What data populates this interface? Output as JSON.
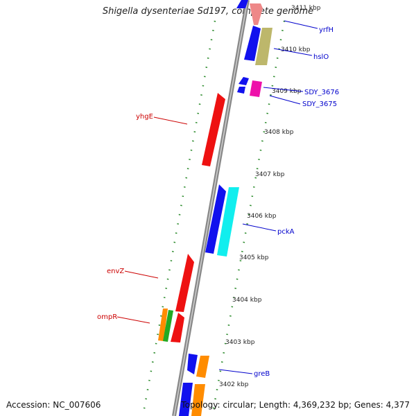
{
  "title": "Shigella dysenteriae Sd197, complete genome",
  "footer": {
    "accession": "Accession: NC_007606",
    "topology": "Topology: circular; Length: 4,369,232 bp; Genes: 4,377"
  },
  "ticks": [
    "3411 kbp",
    "3410 kbp",
    "3409 kbp",
    "3408 kbp",
    "3407 kbp",
    "3406 kbp",
    "3405 kbp",
    "3404 kbp",
    "3403 kbp",
    "3402 kbp"
  ],
  "genes": {
    "yrfH": "yrfH",
    "hslO": "hslO",
    "SDY_3676": "SDY_3676",
    "SDY_3675": "SDY_3675",
    "yhgE": "yhgE",
    "pckA": "pckA",
    "envZ": "envZ",
    "ompR": "ompR",
    "greB": "greB"
  },
  "colors": {
    "red": "#ee1111",
    "blue": "#1111ee",
    "cyan": "#11eeee",
    "olive": "#bdb76b",
    "magenta": "#ee11aa",
    "orange": "#ff8c00",
    "green": "#22aa22",
    "salmon": "#ee8888",
    "tick_green": "#2a8a2a"
  }
}
